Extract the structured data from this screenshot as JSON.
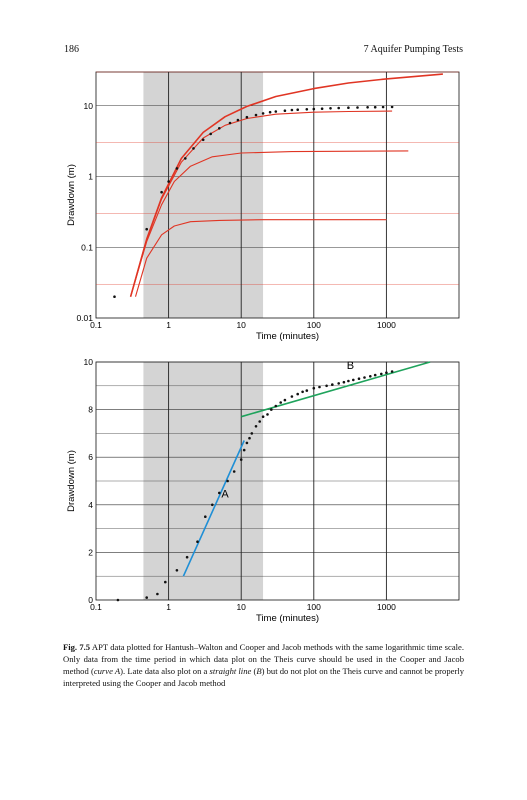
{
  "header": {
    "page_number": "186",
    "running_title": "7   Aquifer Pumping Tests"
  },
  "chart_data": [
    {
      "type": "line",
      "xlabel": "Time (minutes)",
      "ylabel": "Drawdown (m)",
      "x_scale": "log",
      "y_scale": "log",
      "xlim": [
        0.1,
        10000
      ],
      "ylim": [
        0.01,
        30
      ],
      "x_ticks": [
        {
          "v": 0.1,
          "label": "0.1"
        },
        {
          "v": 1,
          "label": "1"
        },
        {
          "v": 10,
          "label": "10"
        },
        {
          "v": 100,
          "label": "100"
        },
        {
          "v": 1000,
          "label": "1000"
        }
      ],
      "y_ticks": [
        {
          "v": 0.01,
          "label": "0.01"
        },
        {
          "v": 0.1,
          "label": "0.1"
        },
        {
          "v": 1,
          "label": "1"
        },
        {
          "v": 10,
          "label": "10"
        }
      ],
      "shaded_x_range": [
        0.45,
        20
      ],
      "observed": [
        [
          0.18,
          0.02
        ],
        [
          0.5,
          0.18
        ],
        [
          0.8,
          0.6
        ],
        [
          1.0,
          0.85
        ],
        [
          1.3,
          1.3
        ],
        [
          1.7,
          1.8
        ],
        [
          2.2,
          2.5
        ],
        [
          3.0,
          3.3
        ],
        [
          3.8,
          4.0
        ],
        [
          5,
          4.8
        ],
        [
          7,
          5.7
        ],
        [
          9,
          6.3
        ],
        [
          12,
          6.9
        ],
        [
          16,
          7.4
        ],
        [
          20,
          7.8
        ],
        [
          25,
          8.1
        ],
        [
          30,
          8.3
        ],
        [
          40,
          8.5
        ],
        [
          50,
          8.7
        ],
        [
          60,
          8.8
        ],
        [
          80,
          8.9
        ],
        [
          100,
          9.0
        ],
        [
          130,
          9.1
        ],
        [
          170,
          9.2
        ],
        [
          220,
          9.3
        ],
        [
          300,
          9.4
        ],
        [
          400,
          9.45
        ],
        [
          550,
          9.5
        ],
        [
          700,
          9.55
        ],
        [
          900,
          9.6
        ],
        [
          1200,
          9.65
        ]
      ],
      "series": [
        {
          "values": [
            [
              0.3,
              0.02
            ],
            [
              0.5,
              0.13
            ],
            [
              0.8,
              0.5
            ],
            [
              1.5,
              1.8
            ],
            [
              3,
              4.2
            ],
            [
              6,
              7.0
            ],
            [
              12,
              9.8
            ],
            [
              30,
              13.5
            ],
            [
              100,
              17.5
            ],
            [
              300,
              21
            ],
            [
              1000,
              24
            ],
            [
              6000,
              28
            ]
          ]
        },
        {
          "values": [
            [
              0.3,
              0.02
            ],
            [
              0.5,
              0.13
            ],
            [
              0.8,
              0.48
            ],
            [
              1.5,
              1.6
            ],
            [
              3,
              3.5
            ],
            [
              6,
              5.3
            ],
            [
              12,
              6.6
            ],
            [
              30,
              7.6
            ],
            [
              100,
              8.1
            ],
            [
              300,
              8.3
            ],
            [
              1200,
              8.4
            ]
          ]
        },
        {
          "values": [
            [
              0.3,
              0.02
            ],
            [
              0.5,
              0.12
            ],
            [
              0.8,
              0.4
            ],
            [
              1.2,
              0.85
            ],
            [
              2,
              1.4
            ],
            [
              4,
              1.9
            ],
            [
              10,
              2.15
            ],
            [
              50,
              2.25
            ],
            [
              2000,
              2.3
            ]
          ]
        },
        {
          "values": [
            [
              0.35,
              0.02
            ],
            [
              0.5,
              0.07
            ],
            [
              0.8,
              0.15
            ],
            [
              1.2,
              0.2
            ],
            [
              2,
              0.23
            ],
            [
              5,
              0.24
            ],
            [
              20,
              0.245
            ],
            [
              1000,
              0.245
            ]
          ]
        }
      ]
    },
    {
      "type": "line",
      "xlabel": "Time (minutes)",
      "ylabel": "Drawdown (m)",
      "x_scale": "log",
      "xlim": [
        0.1,
        10000
      ],
      "ylim": [
        0,
        10
      ],
      "x_ticks": [
        {
          "v": 0.1,
          "label": "0.1"
        },
        {
          "v": 1,
          "label": "1"
        },
        {
          "v": 10,
          "label": "10"
        },
        {
          "v": 100,
          "label": "100"
        },
        {
          "v": 1000,
          "label": "1000"
        }
      ],
      "y_ticks": [
        {
          "v": 0,
          "label": "0"
        },
        {
          "v": 2,
          "label": "2"
        },
        {
          "v": 4,
          "label": "4"
        },
        {
          "v": 6,
          "label": "6"
        },
        {
          "v": 8,
          "label": "8"
        },
        {
          "v": 10,
          "label": "10"
        }
      ],
      "shaded_x_range": [
        0.45,
        20
      ],
      "observed": [
        [
          0.2,
          0.0
        ],
        [
          0.5,
          0.1
        ],
        [
          0.7,
          0.25
        ],
        [
          0.9,
          0.75
        ],
        [
          1.3,
          1.25
        ],
        [
          1.8,
          1.8
        ],
        [
          2.5,
          2.45
        ],
        [
          3.2,
          3.5
        ],
        [
          4,
          4.0
        ],
        [
          5,
          4.5
        ],
        [
          6.5,
          5.0
        ],
        [
          8,
          5.4
        ],
        [
          10,
          5.9
        ],
        [
          11,
          6.3
        ],
        [
          12,
          6.6
        ],
        [
          13,
          6.8
        ],
        [
          14,
          7.0
        ],
        [
          16,
          7.3
        ],
        [
          18,
          7.5
        ],
        [
          20,
          7.7
        ],
        [
          23,
          7.8
        ],
        [
          26,
          8.0
        ],
        [
          30,
          8.15
        ],
        [
          35,
          8.3
        ],
        [
          40,
          8.4
        ],
        [
          50,
          8.55
        ],
        [
          60,
          8.65
        ],
        [
          70,
          8.75
        ],
        [
          80,
          8.8
        ],
        [
          100,
          8.9
        ],
        [
          120,
          8.95
        ],
        [
          150,
          9.0
        ],
        [
          180,
          9.05
        ],
        [
          220,
          9.1
        ],
        [
          260,
          9.15
        ],
        [
          300,
          9.2
        ],
        [
          350,
          9.25
        ],
        [
          420,
          9.3
        ],
        [
          500,
          9.35
        ],
        [
          600,
          9.4
        ],
        [
          700,
          9.45
        ],
        [
          850,
          9.5
        ],
        [
          1000,
          9.55
        ],
        [
          1200,
          9.6
        ]
      ],
      "series": [
        {
          "name": "A",
          "color": "#1f8fd6",
          "values": [
            [
              1.6,
              1.0
            ],
            [
              11,
              6.7
            ]
          ]
        },
        {
          "name": "B",
          "color": "#1fa35c",
          "values": [
            [
              10,
              7.7
            ],
            [
              4000,
              10.0
            ]
          ]
        }
      ],
      "annotations": [
        {
          "text": "A",
          "x": 6.0,
          "y": 4.3
        },
        {
          "text": "B",
          "x": 320,
          "y": 9.7
        }
      ]
    }
  ],
  "caption": {
    "label": "Fig. 7.5",
    "text_1": "  APT data plotted for Hantush–Walton and Cooper and Jacob methods with the same logarithmic time scale. Only data from the time period in which data plot on the Theis curve should be used in the Cooper and Jacob method (",
    "italic_1": "curve A",
    "text_2": "). Late data also plot on a ",
    "italic_2": "straight line",
    "text_3": " (",
    "italic_3": "B",
    "text_4": ") but do not plot on the Theis curve and cannot be properly interpreted using the Cooper and Jacob method"
  },
  "colors": {
    "model_curve": "#e03524",
    "shade": "#d4d4d4",
    "line_a": "#1f8fd6",
    "line_b": "#1fa35c",
    "points": "#111111"
  }
}
